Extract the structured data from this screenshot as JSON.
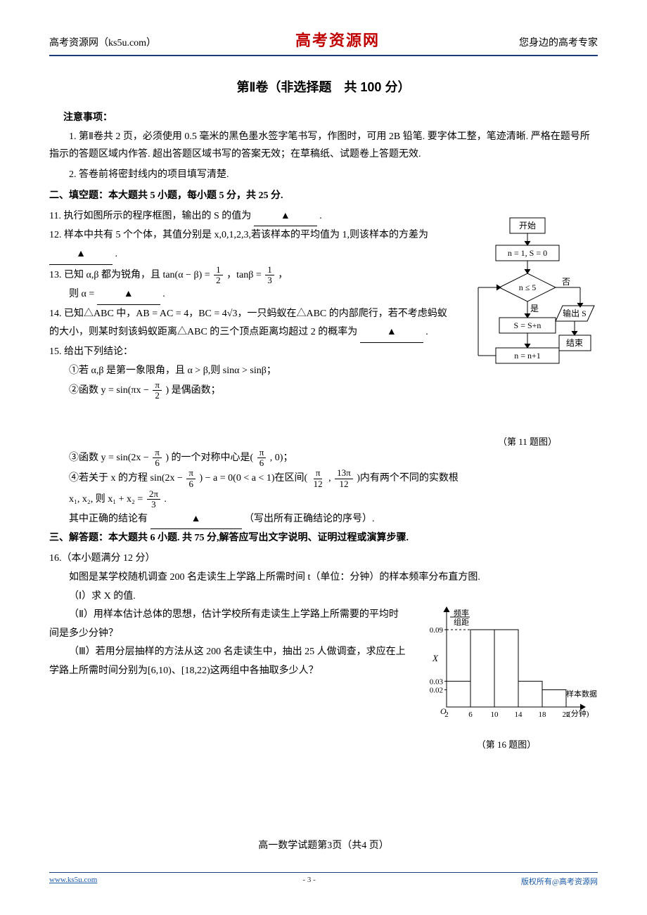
{
  "header": {
    "left": "高考资源网（ks5u.com）",
    "center": "高考资源网",
    "right": "您身边的高考专家"
  },
  "section_title": "第Ⅱ卷（非选择题　共 100 分）",
  "notice_label": "注意事项：",
  "notice_1": "1. 第Ⅱ卷共 2 页，必须使用 0.5 毫米的黑色墨水签字笔书写，作图时，可用 2B 铅笔. 要字体工整，笔迹清晰. 严格在题号所指示的答题区域内作答. 超出答题区域书写的答案无效；在草稿纸、试题卷上答题无效.",
  "notice_2": "2. 答卷前将密封线内的项目填写清楚.",
  "part2_title": "二、填空题：本大题共 5 小题，每小题 5 分，共 25 分.",
  "q11": "11. 执行如图所示的程序框图，输出的 S 的值为",
  "q12": "12. 样本中共有 5 个个体，其值分别是 x,0,1,2,3,若该样本的平均值为 1,则该样本的方差为",
  "q13_a": "13. 已知 α,β 都为锐角，且 tan(α − β) = ",
  "q13_b": "，tanβ = ",
  "q13_c": "，",
  "q13_d": "则 α =",
  "q14_a": "14. 已知△ABC 中，AB = AC = 4，BC = 4√3，一只蚂蚁在△ABC 的内部爬行，若不考虑蚂蚁的大小，则某时刻该蚂蚁距离△ABC 的三个顶点距离均超过 2 的概率为",
  "q15_title": "15. 给出下列结论：",
  "q15_1": "①若 α,β 是第一象限角，且 α > β,则 sinα > sinβ；",
  "q15_2a": "②函数 y = sin(πx − ",
  "q15_2b": ") 是偶函数；",
  "q15_3a": "③函数 y = sin(2x − ",
  "q15_3b": ") 的一个对称中心是( ",
  "q15_3c": " , 0)；",
  "q15_4a": "④若关于 x 的方程 sin(2x − ",
  "q15_4b": ") − a = 0(0 < a < 1)在区间( ",
  "q15_4c": " , ",
  "q15_4d": " )内有两个不同的实数根",
  "q15_4e": "x₁, x₂, 则 x₁ + x₂ = ",
  "q15_4f": ".",
  "q15_end_a": "其中正确的结论有",
  "q15_end_b": "（写出所有正确结论的序号）.",
  "part3_title": "三、解答题：本大题共 6 小题. 共 75 分,解答应写出文字说明、证明过程或演算步骤.",
  "q16_title": "16.（本小题满分 12 分）",
  "q16_intro": "如图是某学校随机调查 200 名走读生上学路上所需时间 t（单位：分钟）的样本频率分布直方图.",
  "q16_1": "（Ⅰ）求 X 的值.",
  "q16_2": "（Ⅱ）用样本估计总体的思想，估计学校所有走读生上学路上所需要的平均时间是多少分钟？",
  "q16_3": "（Ⅲ）若用分层抽样的方法从这 200 名走读生中，抽出 25 人做调查，求应在上学路上所需时间分别为[6,10)、[18,22)这两组中各抽取多少人？",
  "page_footer": "高一数学试题第3页（共4 页）",
  "footer": {
    "left": "www.ks5u.com",
    "mid": "- 3 -",
    "right": "版权所有@高考资源网"
  },
  "flowchart": {
    "caption": "（第 11 题图）",
    "start": "开始",
    "init": "n = 1, S = 0",
    "cond": "n ≤ 5",
    "yes": "是",
    "no": "否",
    "body": "S = S+n",
    "step": "n = n+1",
    "output": "输出 S",
    "end": "结束",
    "colors": {
      "stroke": "#000000",
      "fill": "#ffffff"
    }
  },
  "histogram": {
    "caption": "（第 16 题图）",
    "ylabel_top": "频率",
    "ylabel_bot": "组距",
    "xlabel_a": "样本数据",
    "xlabel_b": "t(分钟)",
    "x_ticks": [
      "2",
      "6",
      "10",
      "14",
      "18",
      "22"
    ],
    "y_ticks": [
      "0.02",
      "0.03",
      "0.09"
    ],
    "X_label": "X",
    "origin": "O",
    "bars": [
      {
        "x0": 2,
        "x1": 6,
        "h": 0.03
      },
      {
        "x0": 6,
        "x1": 10,
        "h": 0.09
      },
      {
        "x0": 10,
        "x1": 14,
        "h": 0.09
      },
      {
        "x0": 14,
        "x1": 18,
        "h": 0.03
      },
      {
        "x0": 18,
        "x1": 22,
        "h": 0.02
      }
    ],
    "colors": {
      "stroke": "#000000",
      "fill": "#ffffff",
      "dash": "#000000"
    }
  },
  "fractions": {
    "half": {
      "n": "1",
      "d": "2"
    },
    "third": {
      "n": "1",
      "d": "3"
    },
    "pi2": {
      "n": "π",
      "d": "2"
    },
    "pi6": {
      "n": "π",
      "d": "6"
    },
    "pi12": {
      "n": "π",
      "d": "12"
    },
    "pi13_12": {
      "n": "13π",
      "d": "12"
    },
    "twopi3": {
      "n": "2π",
      "d": "3"
    }
  },
  "blank_mark": "▲"
}
